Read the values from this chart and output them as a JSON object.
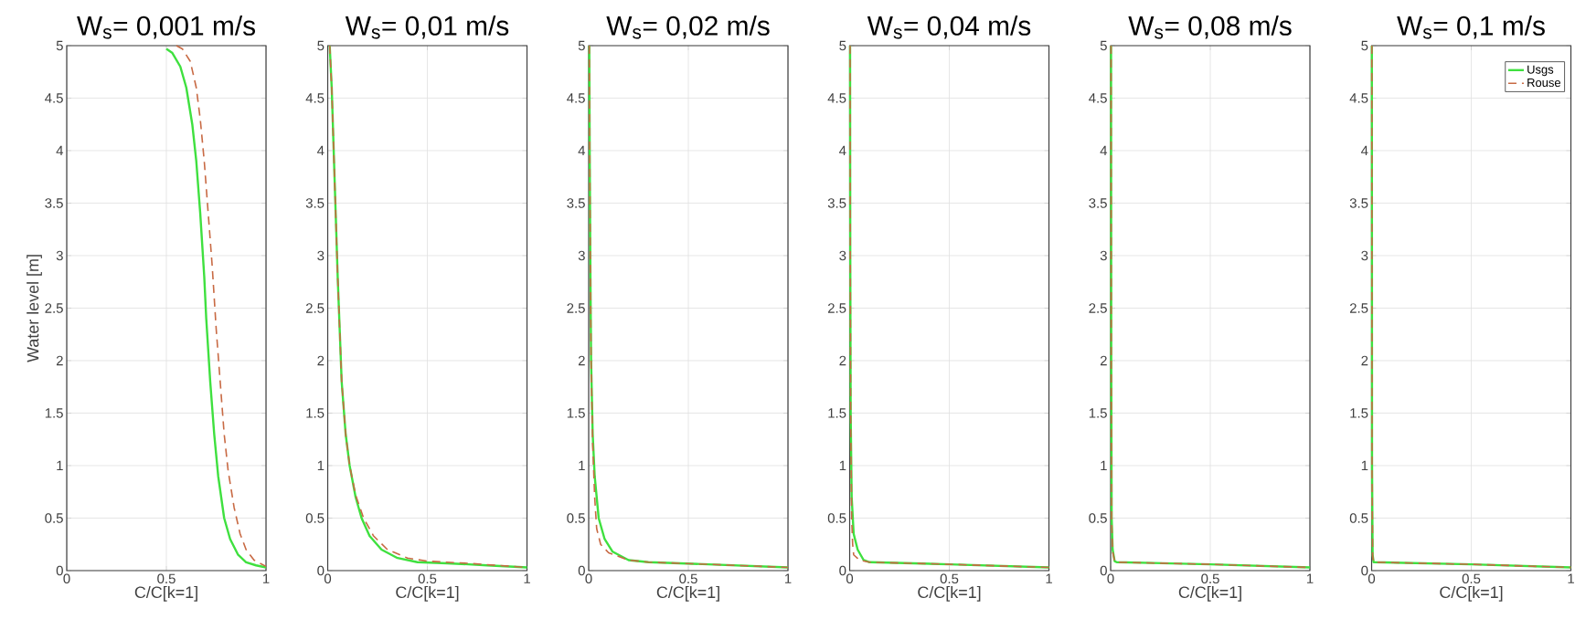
{
  "chart_data": [
    {
      "type": "line",
      "title": "W$_{s}$= 0,001 m/s",
      "xlabel": "C/C[k=1]",
      "ylabel": "Water level [m]",
      "xlim": [
        0,
        1
      ],
      "ylim": [
        0,
        5
      ],
      "xticks": [
        0,
        0.5,
        1
      ],
      "yticks": [
        0,
        0.5,
        1,
        1.5,
        2,
        2.5,
        3,
        3.5,
        4,
        4.5,
        5
      ],
      "grid": true,
      "series": [
        {
          "color": "#3fe03f",
          "line_style": "solid",
          "x": [
            0.5,
            0.53,
            0.57,
            0.6,
            0.63,
            0.65,
            0.67,
            0.69,
            0.7,
            0.72,
            0.74,
            0.76,
            0.79,
            0.82,
            0.86,
            0.9,
            0.95,
            1
          ],
          "values": [
            4.97,
            4.93,
            4.8,
            4.6,
            4.25,
            3.9,
            3.4,
            2.8,
            2.4,
            1.8,
            1.3,
            0.9,
            0.5,
            0.3,
            0.15,
            0.08,
            0.05,
            0.03
          ]
        },
        {
          "color": "#c86a44",
          "line_style": "dashed",
          "x": [
            0.55,
            0.58,
            0.62,
            0.65,
            0.67,
            0.69,
            0.71,
            0.73,
            0.75,
            0.77,
            0.79,
            0.81,
            0.84,
            0.87,
            0.9,
            0.94,
            1
          ],
          "values": [
            5,
            4.97,
            4.85,
            4.6,
            4.3,
            3.9,
            3.4,
            2.9,
            2.3,
            1.8,
            1.3,
            0.95,
            0.6,
            0.35,
            0.2,
            0.1,
            0.04
          ]
        }
      ]
    },
    {
      "type": "line",
      "title": "W$_{s}$= 0,01 m/s",
      "xlabel": "C/C[k=1]",
      "xlim": [
        0,
        1
      ],
      "ylim": [
        0,
        5
      ],
      "xticks": [
        0,
        0.5,
        1
      ],
      "yticks": [
        0,
        0.5,
        1,
        1.5,
        2,
        2.5,
        3,
        3.5,
        4,
        4.5,
        5
      ],
      "grid": true,
      "series": [
        {
          "color": "#3fe03f",
          "line_style": "solid",
          "x": [
            0.01,
            0.02,
            0.03,
            0.04,
            0.05,
            0.06,
            0.07,
            0.09,
            0.11,
            0.14,
            0.17,
            0.21,
            0.27,
            0.35,
            0.45,
            0.6,
            0.8,
            1
          ],
          "values": [
            5,
            4.6,
            4,
            3.4,
            2.8,
            2.3,
            1.8,
            1.3,
            1,
            0.7,
            0.5,
            0.33,
            0.2,
            0.12,
            0.08,
            0.07,
            0.05,
            0.03
          ]
        },
        {
          "color": "#c86a44",
          "line_style": "dashed",
          "x": [
            0.01,
            0.02,
            0.03,
            0.04,
            0.05,
            0.06,
            0.07,
            0.09,
            0.11,
            0.14,
            0.18,
            0.23,
            0.3,
            0.4,
            0.5,
            0.7,
            1
          ],
          "values": [
            5,
            4.6,
            4,
            3.4,
            2.8,
            2.3,
            1.8,
            1.3,
            1,
            0.72,
            0.5,
            0.33,
            0.2,
            0.12,
            0.09,
            0.07,
            0.03
          ]
        }
      ]
    },
    {
      "type": "line",
      "title": "W$_{s}$= 0,02 m/s",
      "xlabel": "C/C[k=1]",
      "xlim": [
        0,
        1
      ],
      "ylim": [
        0,
        5
      ],
      "xticks": [
        0,
        0.5,
        1
      ],
      "yticks": [
        0,
        0.5,
        1,
        1.5,
        2,
        2.5,
        3,
        3.5,
        4,
        4.5,
        5
      ],
      "grid": true,
      "series": [
        {
          "color": "#3fe03f",
          "line_style": "solid",
          "x": [
            0.003,
            0.005,
            0.008,
            0.012,
            0.02,
            0.03,
            0.05,
            0.08,
            0.12,
            0.2,
            0.3,
            0.6,
            1
          ],
          "values": [
            5,
            4,
            3,
            2,
            1.3,
            0.9,
            0.5,
            0.3,
            0.18,
            0.1,
            0.08,
            0.06,
            0.03
          ]
        },
        {
          "color": "#c86a44",
          "line_style": "dashed",
          "x": [
            0.003,
            0.005,
            0.008,
            0.012,
            0.02,
            0.03,
            0.04,
            0.06,
            0.1,
            0.2,
            0.3,
            0.6,
            1
          ],
          "values": [
            5,
            4,
            3,
            2,
            1.2,
            0.7,
            0.4,
            0.25,
            0.17,
            0.1,
            0.08,
            0.06,
            0.03
          ]
        }
      ]
    },
    {
      "type": "line",
      "title": "W$_{s}$= 0,04 m/s",
      "xlabel": "C/C[k=1]",
      "xlim": [
        0,
        1
      ],
      "ylim": [
        0,
        5
      ],
      "xticks": [
        0,
        0.5,
        1
      ],
      "yticks": [
        0,
        0.5,
        1,
        1.5,
        2,
        2.5,
        3,
        3.5,
        4,
        4.5,
        5
      ],
      "grid": true,
      "series": [
        {
          "color": "#3fe03f",
          "line_style": "solid",
          "x": [
            0.002,
            0.003,
            0.005,
            0.01,
            0.02,
            0.04,
            0.07,
            0.1,
            0.5,
            1
          ],
          "values": [
            5,
            3,
            1.5,
            0.7,
            0.35,
            0.2,
            0.1,
            0.08,
            0.06,
            0.03
          ]
        },
        {
          "color": "#c86a44",
          "line_style": "dashed",
          "x": [
            0.002,
            0.003,
            0.005,
            0.01,
            0.015,
            0.02,
            0.05,
            0.1,
            0.5,
            1
          ],
          "values": [
            5,
            3,
            1.5,
            0.5,
            0.25,
            0.15,
            0.1,
            0.08,
            0.06,
            0.03
          ]
        }
      ]
    },
    {
      "type": "line",
      "title": "W$_{s}$= 0,08 m/s",
      "xlabel": "C/C[k=1]",
      "xlim": [
        0,
        1
      ],
      "ylim": [
        0,
        5
      ],
      "xticks": [
        0,
        0.5,
        1
      ],
      "yticks": [
        0,
        0.5,
        1,
        1.5,
        2,
        2.5,
        3,
        3.5,
        4,
        4.5,
        5
      ],
      "grid": true,
      "series": [
        {
          "color": "#3fe03f",
          "line_style": "solid",
          "x": [
            0.002,
            0.003,
            0.005,
            0.01,
            0.02,
            0.03,
            0.5,
            1
          ],
          "values": [
            5,
            2,
            0.5,
            0.2,
            0.09,
            0.08,
            0.06,
            0.03
          ]
        },
        {
          "color": "#c86a44",
          "line_style": "dashed",
          "x": [
            0.002,
            0.003,
            0.005,
            0.01,
            0.02,
            0.03,
            0.5,
            1
          ],
          "values": [
            5,
            2,
            0.45,
            0.18,
            0.09,
            0.08,
            0.06,
            0.03
          ]
        }
      ]
    },
    {
      "type": "line",
      "title": "W$_{s}$= 0,1 m/s",
      "xlabel": "C/C[k=1]",
      "xlim": [
        0,
        1
      ],
      "ylim": [
        0,
        5
      ],
      "xticks": [
        0,
        0.5,
        1
      ],
      "yticks": [
        0,
        0.5,
        1,
        1.5,
        2,
        2.5,
        3,
        3.5,
        4,
        4.5,
        5
      ],
      "grid": true,
      "legend": "top right",
      "series": [
        {
          "name": "Usgs",
          "color": "#3fe03f",
          "line_style": "solid",
          "x": [
            0.001,
            0.002,
            0.005,
            0.01,
            0.5,
            1
          ],
          "values": [
            5,
            1,
            0.15,
            0.08,
            0.06,
            0.03
          ]
        },
        {
          "name": "Rouse",
          "color": "#c86a44",
          "line_style": "dashed",
          "x": [
            0.001,
            0.002,
            0.005,
            0.01,
            0.5,
            1
          ],
          "values": [
            5,
            0.9,
            0.14,
            0.08,
            0.06,
            0.03
          ]
        }
      ]
    }
  ]
}
